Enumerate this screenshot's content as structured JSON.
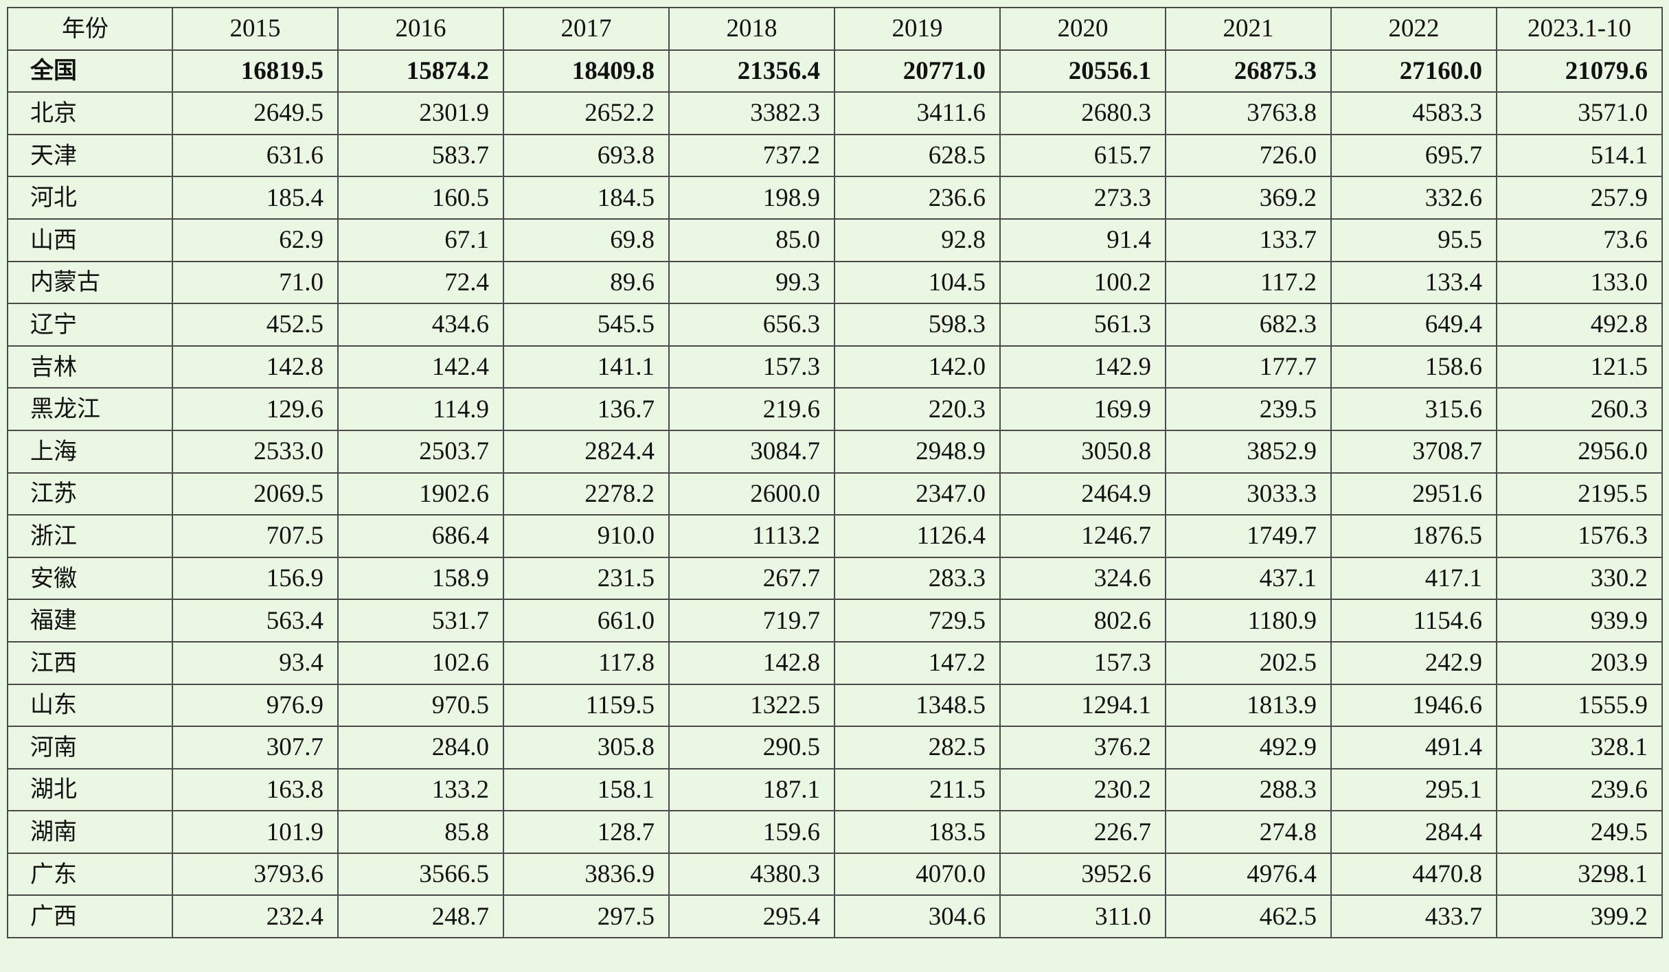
{
  "table": {
    "headers": [
      "年份",
      "2015",
      "2016",
      "2017",
      "2018",
      "2019",
      "2020",
      "2021",
      "2022",
      "2023.1-10"
    ],
    "total_row": {
      "region": "全国",
      "values": [
        "16819.5",
        "15874.2",
        "18409.8",
        "21356.4",
        "20771.0",
        "20556.1",
        "26875.3",
        "27160.0",
        "21079.6"
      ]
    },
    "rows": [
      {
        "region": "北京",
        "values": [
          "2649.5",
          "2301.9",
          "2652.2",
          "3382.3",
          "3411.6",
          "2680.3",
          "3763.8",
          "4583.3",
          "3571.0"
        ]
      },
      {
        "region": "天津",
        "values": [
          "631.6",
          "583.7",
          "693.8",
          "737.2",
          "628.5",
          "615.7",
          "726.0",
          "695.7",
          "514.1"
        ]
      },
      {
        "region": "河北",
        "values": [
          "185.4",
          "160.5",
          "184.5",
          "198.9",
          "236.6",
          "273.3",
          "369.2",
          "332.6",
          "257.9"
        ]
      },
      {
        "region": "山西",
        "values": [
          "62.9",
          "67.1",
          "69.8",
          "85.0",
          "92.8",
          "91.4",
          "133.7",
          "95.5",
          "73.6"
        ]
      },
      {
        "region": "内蒙古",
        "values": [
          "71.0",
          "72.4",
          "89.6",
          "99.3",
          "104.5",
          "100.2",
          "117.2",
          "133.4",
          "133.0"
        ]
      },
      {
        "region": "辽宁",
        "values": [
          "452.5",
          "434.6",
          "545.5",
          "656.3",
          "598.3",
          "561.3",
          "682.3",
          "649.4",
          "492.8"
        ]
      },
      {
        "region": "吉林",
        "values": [
          "142.8",
          "142.4",
          "141.1",
          "157.3",
          "142.0",
          "142.9",
          "177.7",
          "158.6",
          "121.5"
        ]
      },
      {
        "region": "黑龙江",
        "values": [
          "129.6",
          "114.9",
          "136.7",
          "219.6",
          "220.3",
          "169.9",
          "239.5",
          "315.6",
          "260.3"
        ]
      },
      {
        "region": "上海",
        "values": [
          "2533.0",
          "2503.7",
          "2824.4",
          "3084.7",
          "2948.9",
          "3050.8",
          "3852.9",
          "3708.7",
          "2956.0"
        ]
      },
      {
        "region": "江苏",
        "values": [
          "2069.5",
          "1902.6",
          "2278.2",
          "2600.0",
          "2347.0",
          "2464.9",
          "3033.3",
          "2951.6",
          "2195.5"
        ]
      },
      {
        "region": "浙江",
        "values": [
          "707.5",
          "686.4",
          "910.0",
          "1113.2",
          "1126.4",
          "1246.7",
          "1749.7",
          "1876.5",
          "1576.3"
        ]
      },
      {
        "region": "安徽",
        "values": [
          "156.9",
          "158.9",
          "231.5",
          "267.7",
          "283.3",
          "324.6",
          "437.1",
          "417.1",
          "330.2"
        ]
      },
      {
        "region": "福建",
        "values": [
          "563.4",
          "531.7",
          "661.0",
          "719.7",
          "729.5",
          "802.6",
          "1180.9",
          "1154.6",
          "939.9"
        ]
      },
      {
        "region": "江西",
        "values": [
          "93.4",
          "102.6",
          "117.8",
          "142.8",
          "147.2",
          "157.3",
          "202.5",
          "242.9",
          "203.9"
        ]
      },
      {
        "region": "山东",
        "values": [
          "976.9",
          "970.5",
          "1159.5",
          "1322.5",
          "1348.5",
          "1294.1",
          "1813.9",
          "1946.6",
          "1555.9"
        ]
      },
      {
        "region": "河南",
        "values": [
          "307.7",
          "284.0",
          "305.8",
          "290.5",
          "282.5",
          "376.2",
          "492.9",
          "491.4",
          "328.1"
        ]
      },
      {
        "region": "湖北",
        "values": [
          "163.8",
          "133.2",
          "158.1",
          "187.1",
          "211.5",
          "230.2",
          "288.3",
          "295.1",
          "239.6"
        ]
      },
      {
        "region": "湖南",
        "values": [
          "101.9",
          "85.8",
          "128.7",
          "159.6",
          "183.5",
          "226.7",
          "274.8",
          "284.4",
          "249.5"
        ]
      },
      {
        "region": "广东",
        "values": [
          "3793.6",
          "3566.5",
          "3836.9",
          "4380.3",
          "4070.0",
          "3952.6",
          "4976.4",
          "4470.8",
          "3298.1"
        ]
      },
      {
        "region": "广西",
        "values": [
          "232.4",
          "248.7",
          "297.5",
          "295.4",
          "304.6",
          "311.0",
          "462.5",
          "433.7",
          "399.2"
        ]
      }
    ]
  }
}
